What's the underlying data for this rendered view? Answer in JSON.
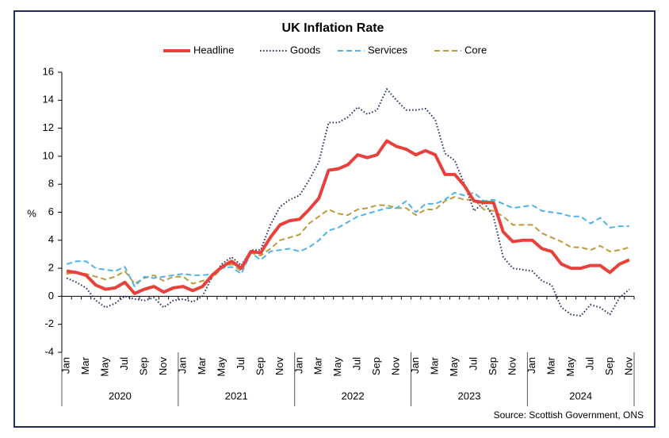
{
  "chart_data": {
    "type": "line",
    "title": "UK Inflation Rate",
    "y_label": "%",
    "source": "Source: Scottish Government, ONS",
    "categories": [
      "Jan",
      null,
      "Mar",
      null,
      "May",
      null,
      "Jul",
      null,
      "Sep",
      null,
      "Nov",
      null,
      "Jan",
      null,
      "Mar",
      null,
      "May",
      null,
      "Jul",
      null,
      "Sep",
      null,
      "Nov",
      null,
      "Jan",
      null,
      "Mar",
      null,
      "May",
      null,
      "Jul",
      null,
      "Sep",
      null,
      "Nov",
      null,
      "Jan",
      null,
      "Mar",
      null,
      "May",
      null,
      "Jul",
      null,
      "Sep",
      null,
      "Nov",
      null,
      "Jan",
      null,
      "Mar",
      null,
      "May",
      null,
      "Jul",
      null,
      "Sep",
      null,
      "Nov"
    ],
    "groups": [
      "2020",
      "2021",
      "2022",
      "2023",
      "2024"
    ],
    "ylim": [
      -4,
      16
    ],
    "yticks": [
      -4,
      -2,
      0,
      2,
      4,
      6,
      8,
      10,
      12,
      14,
      16
    ],
    "grid": false,
    "legend": "top",
    "series": [
      {
        "name": "Headline",
        "color": "#e8403a",
        "style": "solid",
        "values": [
          1.8,
          1.7,
          1.5,
          0.8,
          0.5,
          0.6,
          1.0,
          0.2,
          0.5,
          0.7,
          0.3,
          0.6,
          0.7,
          0.4,
          0.7,
          1.5,
          2.1,
          2.5,
          2.0,
          3.2,
          3.1,
          4.2,
          5.1,
          5.4,
          5.5,
          6.2,
          7.0,
          9.0,
          9.1,
          9.4,
          10.1,
          9.9,
          10.1,
          11.1,
          10.7,
          10.5,
          10.1,
          10.4,
          10.1,
          8.7,
          8.7,
          7.9,
          6.8,
          6.7,
          6.7,
          4.6,
          3.9,
          4.0,
          4.0,
          3.4,
          3.2,
          2.3,
          2.0,
          2.0,
          2.2,
          2.2,
          1.7,
          2.3,
          2.6
        ]
      },
      {
        "name": "Goods",
        "color": "#1f2f5e",
        "style": "dotted",
        "values": [
          1.3,
          1.0,
          0.6,
          -0.3,
          -0.8,
          -0.5,
          0.0,
          -0.2,
          -0.3,
          -0.1,
          -0.8,
          -0.3,
          -0.2,
          -0.4,
          0.0,
          1.4,
          2.3,
          2.8,
          2.2,
          3.3,
          3.3,
          5.1,
          6.4,
          6.9,
          7.2,
          8.3,
          9.6,
          12.4,
          12.4,
          12.8,
          13.5,
          13.0,
          13.3,
          14.8,
          14.0,
          13.3,
          13.3,
          13.4,
          12.6,
          10.2,
          9.7,
          8.0,
          6.1,
          6.7,
          5.7,
          2.8,
          2.0,
          1.9,
          1.8,
          1.1,
          0.8,
          -0.8,
          -1.3,
          -1.4,
          -0.6,
          -0.8,
          -1.3,
          -0.1,
          0.5
        ]
      },
      {
        "name": "Services",
        "color": "#4eb3e8",
        "style": "dashed",
        "values": [
          2.3,
          2.5,
          2.5,
          2.0,
          1.9,
          1.8,
          2.1,
          0.7,
          1.4,
          1.3,
          1.4,
          1.5,
          1.6,
          1.5,
          1.5,
          1.6,
          2.0,
          2.1,
          1.6,
          3.1,
          2.6,
          3.2,
          3.3,
          3.4,
          3.2,
          3.5,
          4.0,
          4.7,
          4.9,
          5.3,
          5.7,
          5.9,
          6.1,
          6.3,
          6.3,
          6.8,
          6.0,
          6.6,
          6.6,
          6.9,
          7.4,
          7.2,
          7.4,
          6.8,
          6.9,
          6.6,
          6.3,
          6.4,
          6.5,
          6.1,
          6.0,
          5.9,
          5.7,
          5.7,
          5.2,
          5.6,
          4.9,
          5.0,
          5.0
        ]
      },
      {
        "name": "Core",
        "color": "#c09a3c",
        "style": "dashed",
        "values": [
          1.6,
          1.7,
          1.6,
          1.4,
          1.2,
          1.4,
          1.8,
          0.9,
          1.3,
          1.5,
          1.1,
          1.4,
          1.4,
          0.9,
          1.1,
          1.3,
          2.0,
          2.3,
          1.8,
          3.1,
          2.9,
          3.4,
          4.0,
          4.2,
          4.4,
          5.2,
          5.7,
          6.2,
          5.9,
          5.8,
          6.2,
          6.3,
          6.5,
          6.5,
          6.3,
          6.3,
          5.8,
          6.2,
          6.2,
          6.8,
          7.1,
          6.9,
          6.9,
          6.2,
          6.1,
          5.7,
          5.1,
          5.1,
          5.1,
          4.5,
          4.2,
          3.9,
          3.5,
          3.5,
          3.3,
          3.6,
          3.2,
          3.3,
          3.5
        ]
      }
    ]
  }
}
